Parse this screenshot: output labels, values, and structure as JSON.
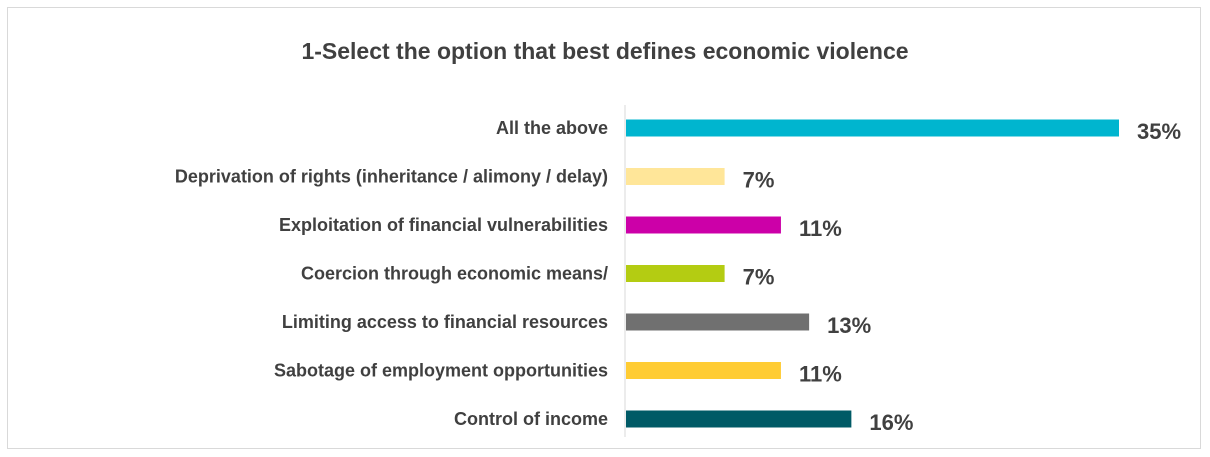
{
  "chart_data": {
    "type": "bar",
    "orientation": "horizontal",
    "title": "1-Select the option that best defines economic violence",
    "xlabel": "",
    "ylabel": "",
    "legend": false,
    "grid": false,
    "categories": [
      "All the above",
      "Deprivation of rights (inheritance / alimony / delay)",
      "Exploitation of financial vulnerabilities",
      "Coercion through economic means/",
      "Limiting access to financial resources",
      "Sabotage of employment opportunities",
      "Control of income"
    ],
    "values": [
      35,
      7,
      11,
      7,
      13,
      11,
      16
    ],
    "value_labels": [
      "35%",
      "7%",
      "11%",
      "7%",
      "13%",
      "11%",
      "16%"
    ],
    "colors": [
      "#00B5CF",
      "#FFE699",
      "#CC00A8",
      "#B4CC12",
      "#707070",
      "#FFCC33",
      "#005A66"
    ],
    "xlim": [
      0,
      35
    ]
  }
}
